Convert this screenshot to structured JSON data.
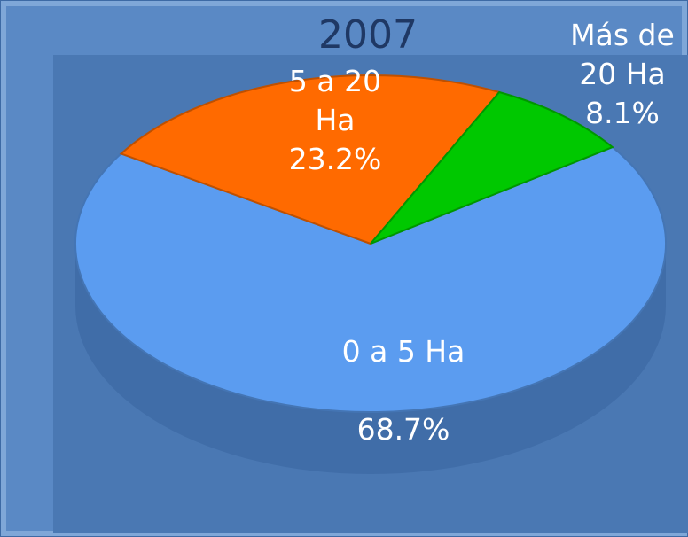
{
  "chart_data": {
    "type": "pie",
    "title": "2007",
    "categories": [
      "0 a 5 Ha",
      "5 a 20 Ha",
      "Más de 20 Ha"
    ],
    "values": [
      68.7,
      23.2,
      8.1
    ],
    "value_labels": [
      "68.7%",
      "23.2%",
      "8.1%"
    ],
    "colors": [
      "#5b9cf0",
      "#ff6a00",
      "#00c800"
    ]
  }
}
